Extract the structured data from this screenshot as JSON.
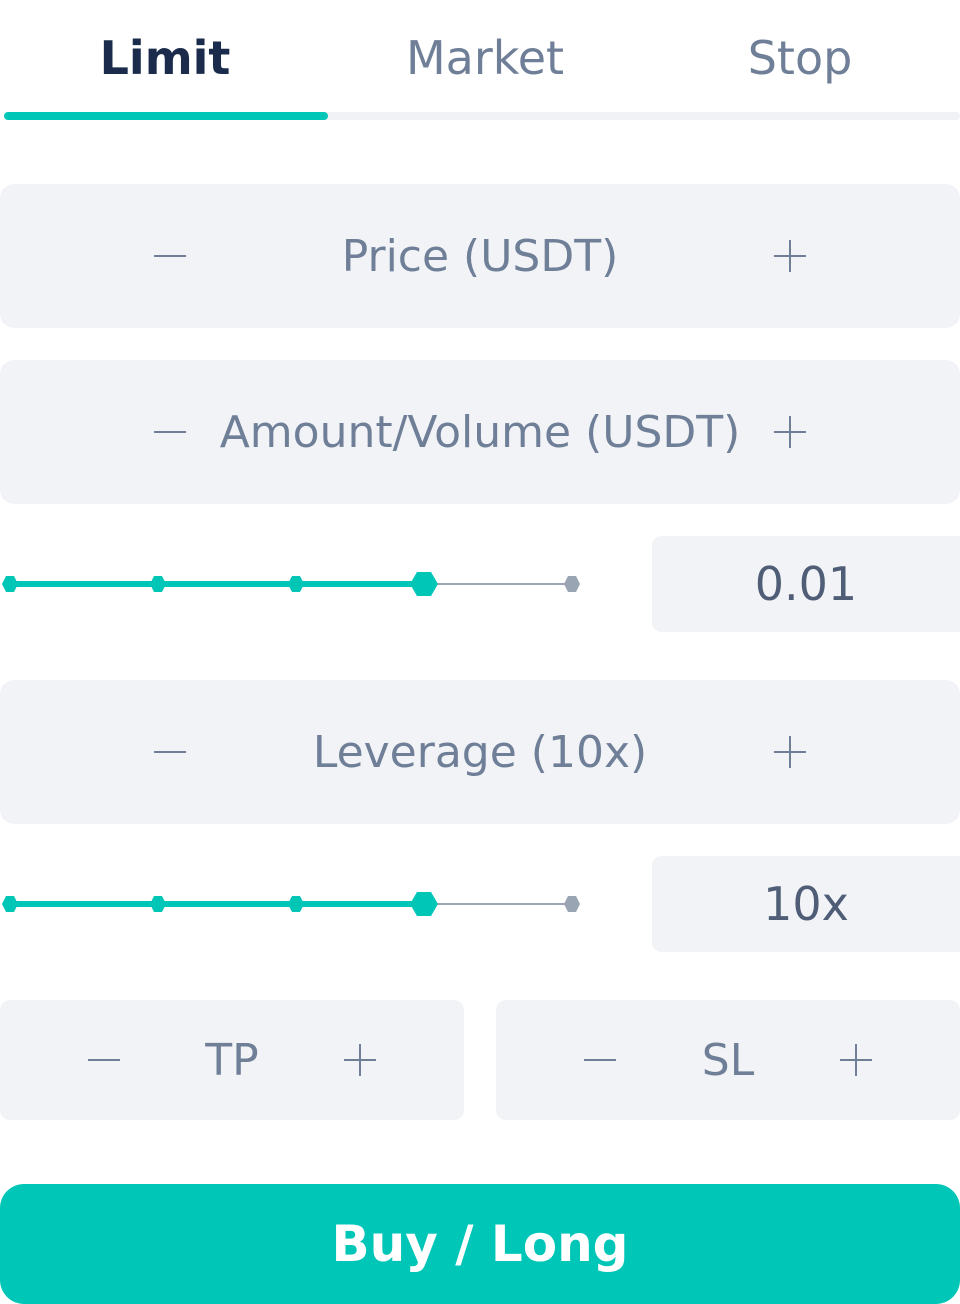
{
  "tabs": {
    "limit": "Limit",
    "market": "Market",
    "stop": "Stop",
    "active": "Limit"
  },
  "price_field": {
    "label": "Price (USDT)"
  },
  "amount_field": {
    "label": "Amount/Volume (USDT)"
  },
  "amount_slider": {
    "value_display": "0.01",
    "position_fraction": 0.75
  },
  "leverage_field": {
    "label": "Leverage (10x)"
  },
  "leverage_slider": {
    "value_display": "10x",
    "position_fraction": 0.75
  },
  "tp_field": {
    "label": "TP"
  },
  "sl_field": {
    "label": "SL"
  },
  "submit": {
    "label": "Buy / Long"
  },
  "colors": {
    "accent": "#00c6b8",
    "field_bg": "#f2f3f7",
    "text_muted": "#6f7f97",
    "text_dark": "#1b2b4b"
  }
}
